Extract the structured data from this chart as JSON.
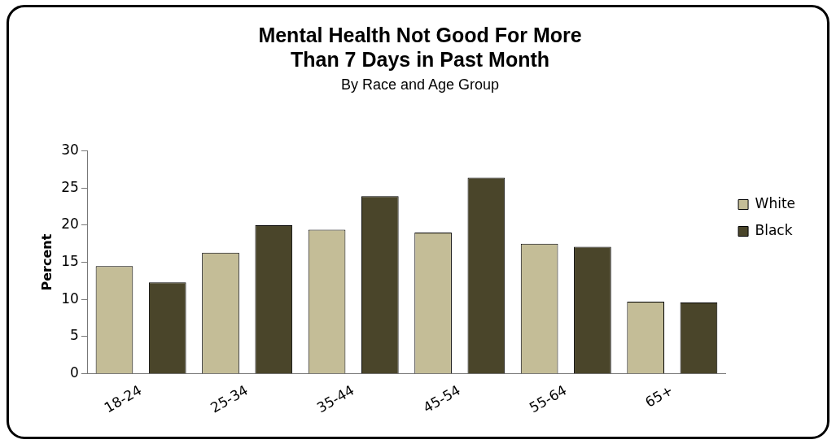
{
  "chart_data": {
    "type": "bar",
    "title": [
      "Mental Health Not Good For More",
      "Than 7 Days in Past Month"
    ],
    "subtitle": "By Race and Age Group",
    "ylabel": "Percent",
    "categories": [
      "18-24",
      "25-34",
      "35-44",
      "45-54",
      "55-64",
      "65+"
    ],
    "series": [
      {
        "name": "White",
        "color": "#c4bd97",
        "values": [
          14.5,
          16.3,
          19.4,
          19.0,
          17.5,
          9.7
        ]
      },
      {
        "name": "Black",
        "color": "#4a452a",
        "values": [
          12.3,
          20.0,
          23.9,
          26.4,
          17.1,
          9.6
        ]
      }
    ],
    "ylim": [
      0,
      30
    ],
    "yticks": [
      0,
      5,
      10,
      15,
      20,
      25,
      30
    ],
    "grid": false,
    "legend": "right"
  }
}
